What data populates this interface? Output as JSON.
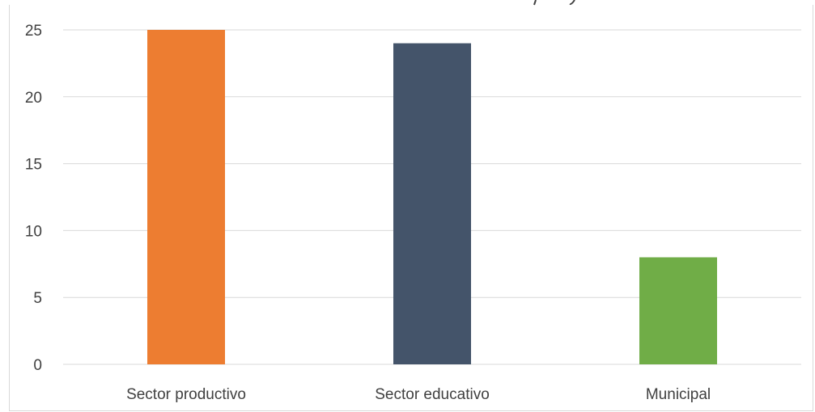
{
  "chart_data": {
    "type": "bar",
    "title": "",
    "xlabel": "",
    "ylabel": "",
    "categories": [
      "Sector productivo",
      "Sector educativo",
      "Municipal"
    ],
    "values": [
      25,
      24,
      8
    ],
    "colors": [
      "#ed7d31",
      "#44546a",
      "#70ad47"
    ],
    "ylim": [
      0,
      25
    ],
    "yticks": [
      0,
      5,
      10,
      15,
      20,
      25
    ],
    "grid": true,
    "legend": "none"
  }
}
